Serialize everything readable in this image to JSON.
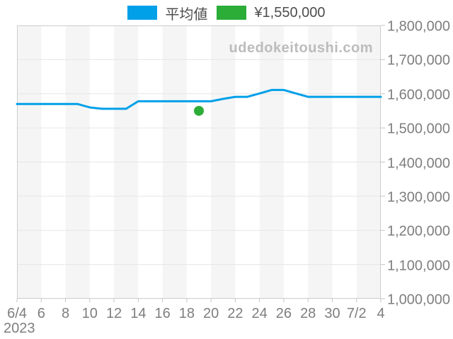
{
  "page": {
    "background": "#ffffff"
  },
  "legend": {
    "items": [
      {
        "label": "平均値",
        "color": "#00a0e8"
      },
      {
        "label": "¥1,550,000",
        "color": "#2bad38"
      }
    ]
  },
  "watermark": {
    "text": "udedokeitoushi.com"
  },
  "chart_data": {
    "type": "line",
    "title": "",
    "x": [
      "6/4",
      "6/5",
      "6/6",
      "6/7",
      "6/8",
      "6/9",
      "6/10",
      "6/11",
      "6/12",
      "6/13",
      "6/14",
      "6/15",
      "6/16",
      "6/17",
      "6/18",
      "6/19",
      "6/20",
      "6/21",
      "6/22",
      "6/23",
      "6/24",
      "6/25",
      "6/26",
      "6/27",
      "6/28",
      "6/29",
      "6/30",
      "7/1",
      "7/2",
      "7/3",
      "7/4"
    ],
    "series": [
      {
        "name": "平均値",
        "color": "#00a0e8",
        "values": [
          1570000,
          1570000,
          1570000,
          1570000,
          1570000,
          1570000,
          1560000,
          1556000,
          1556000,
          1556000,
          1578000,
          1578000,
          1578000,
          1578000,
          1578000,
          1578000,
          1578000,
          1585000,
          1591000,
          1591000,
          1601000,
          1611000,
          1611000,
          1601000,
          1591000,
          1591000,
          1591000,
          1591000,
          1591000,
          1591000,
          1591000
        ]
      }
    ],
    "marker_point": {
      "x": "6/19",
      "value": 1550000,
      "label": "¥1,550,000",
      "color": "#2bad38"
    },
    "xtick_labels": [
      "6/4",
      "6",
      "8",
      "10",
      "12",
      "14",
      "16",
      "18",
      "20",
      "22",
      "24",
      "26",
      "28",
      "30",
      "7/2",
      "4"
    ],
    "x_year_label": "2023",
    "ytick_labels": [
      "1,800,000",
      "1,700,000",
      "1,600,000",
      "1,500,000",
      "1,400,000",
      "1,300,000",
      "1,200,000",
      "1,100,000",
      "1,000,000"
    ],
    "ylim": [
      1000000,
      1800000
    ],
    "ytick_step": 100000,
    "grid": "horizontal",
    "gridline_color": "#e6e6e6",
    "border_color": "#cccccc",
    "tick_color": "#c4c4c4",
    "background_band_color": "#f5f5f5",
    "legend_position": "top"
  }
}
